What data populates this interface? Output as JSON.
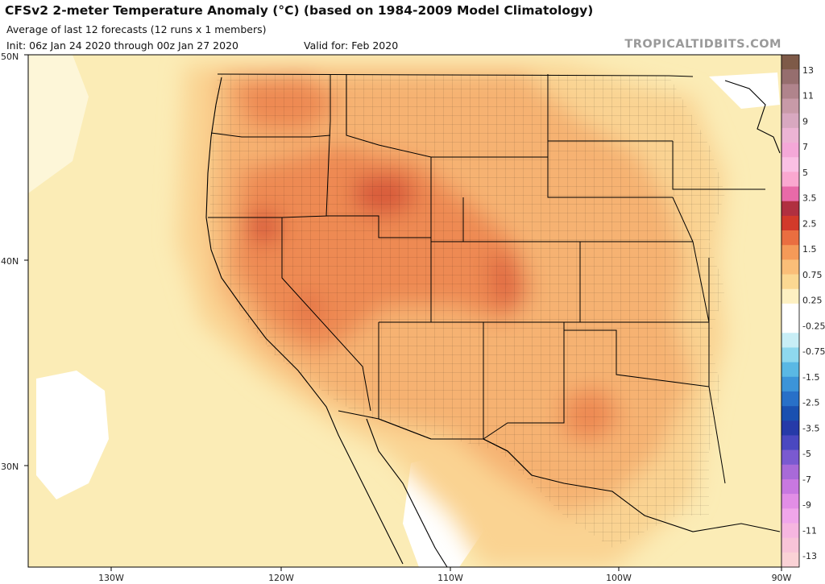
{
  "header": {
    "title": "CFSv2 2-meter Temperature Anomaly (°C) (based on 1984-2009 Model Climatology)",
    "subtitle": "Average of last 12 forecasts (12 runs x 1 members)",
    "init": "Init: 06z Jan 24 2020 through 00z Jan 27 2020",
    "valid": "Valid for: Feb 2020",
    "credit": "TROPICALTIDBITS.COM"
  },
  "map": {
    "lat_labels": [
      "50N",
      "40N",
      "30N"
    ],
    "lon_labels": [
      "130W",
      "120W",
      "110W",
      "100W",
      "90W"
    ],
    "land_color": "#fbecb6",
    "border_color": "#000000"
  },
  "colorbar": {
    "labels": [
      "13",
      "11",
      "9",
      "7",
      "5",
      "3.5",
      "2.5",
      "1.5",
      "0.75",
      "0.25",
      "-0.25",
      "-0.75",
      "-1.5",
      "-2.5",
      "-3.5",
      "-5",
      "-7",
      "-9",
      "-11",
      "-13"
    ],
    "colors": [
      "#7e5a48",
      "#966e6e",
      "#b0848c",
      "#c89aa8",
      "#d8a8c0",
      "#ecb4d4",
      "#f4a8d8",
      "#fac0e4",
      "#faa8d0",
      "#e86aa8",
      "#b03040",
      "#d23a2a",
      "#ea6e40",
      "#f59a58",
      "#fabe78",
      "#fbd892",
      "#fdf0c2",
      "#ffffff",
      "#ffffff",
      "#c8eef6",
      "#8ed8ee",
      "#5ab8e4",
      "#3c94d8",
      "#2870c8",
      "#1a50b0",
      "#263aa8",
      "#4a48c0",
      "#7a5ad0",
      "#a86ad8",
      "#c878e0",
      "#e28ee6",
      "#f0a6ea",
      "#f6b6e0",
      "#f8c4d8",
      "#fad2d6"
    ]
  }
}
